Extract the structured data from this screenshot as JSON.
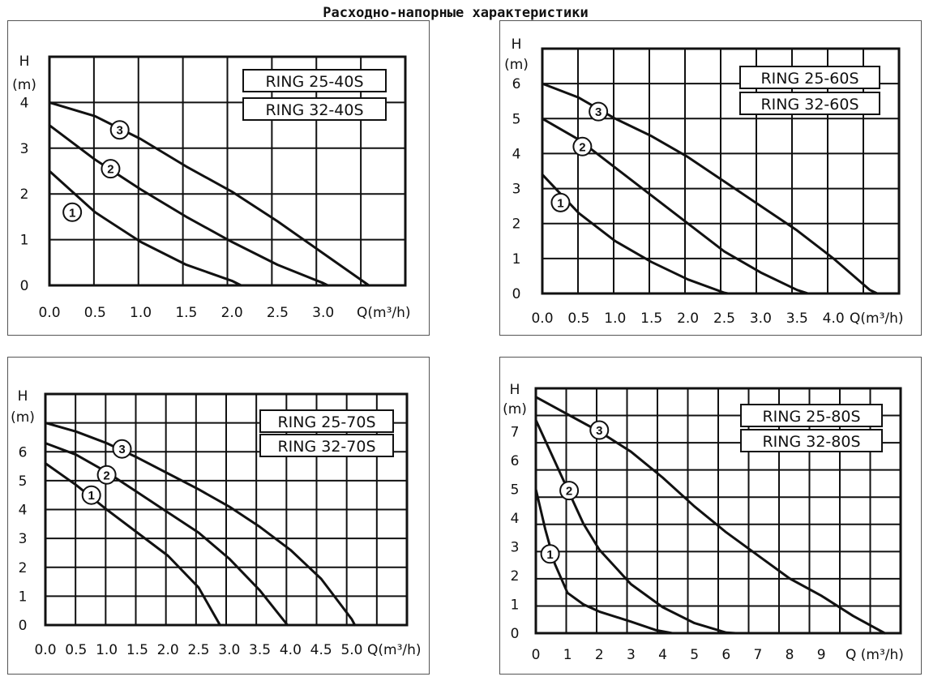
{
  "page_title": "Расходно-напорные характеристики",
  "chart_data": [
    {
      "type": "line",
      "models": [
        "RING 25-40S",
        "RING 32-40S"
      ],
      "ylabel_line1": "H",
      "ylabel_line2": "(m)",
      "xlabel": "Q(m³/h)",
      "xlim": [
        0,
        3.9
      ],
      "ylim": [
        0,
        5
      ],
      "grid_x": 8,
      "grid_y": 5,
      "x_ticks": [
        "0.0",
        "0.5",
        "1.0",
        "1.5",
        "2.0",
        "2.5",
        "3.0"
      ],
      "y_ticks": [
        "0",
        "1",
        "2",
        "3",
        "4"
      ],
      "series": [
        {
          "name": "1",
          "label_at": [
            0.25,
            1.6
          ],
          "points": [
            [
              0,
              2.5
            ],
            [
              0.5,
              1.6
            ],
            [
              1.0,
              0.95
            ],
            [
              1.5,
              0.45
            ],
            [
              2.0,
              0.1
            ],
            [
              2.1,
              0
            ]
          ]
        },
        {
          "name": "2",
          "label_at": [
            0.67,
            2.55
          ],
          "points": [
            [
              0,
              3.5
            ],
            [
              0.5,
              2.75
            ],
            [
              1.0,
              2.1
            ],
            [
              1.5,
              1.5
            ],
            [
              2.0,
              0.95
            ],
            [
              2.5,
              0.45
            ],
            [
              3.0,
              0.05
            ],
            [
              3.05,
              0
            ]
          ]
        },
        {
          "name": "3",
          "label_at": [
            0.77,
            3.4
          ],
          "points": [
            [
              0,
              4.0
            ],
            [
              0.5,
              3.7
            ],
            [
              1.0,
              3.2
            ],
            [
              1.5,
              2.6
            ],
            [
              2.0,
              2.05
            ],
            [
              2.5,
              1.4
            ],
            [
              3.0,
              0.7
            ],
            [
              3.5,
              0
            ]
          ]
        }
      ]
    },
    {
      "type": "line",
      "models": [
        "RING 25-60S",
        "RING 32-60S"
      ],
      "ylabel_line1": "H",
      "ylabel_line2": "(m)",
      "xlabel": "Q(m³/h)",
      "xlim": [
        0,
        4.9
      ],
      "ylim": [
        0,
        7
      ],
      "grid_x": 10,
      "grid_y": 7,
      "x_ticks": [
        "0.0",
        "0.5",
        "1.0",
        "1.5",
        "2.0",
        "2.5",
        "3.0",
        "3.5",
        "4.0"
      ],
      "y_ticks": [
        "0",
        "1",
        "2",
        "3",
        "4",
        "5",
        "6"
      ],
      "series": [
        {
          "name": "1",
          "label_at": [
            0.25,
            2.6
          ],
          "points": [
            [
              0,
              3.4
            ],
            [
              0.5,
              2.3
            ],
            [
              1.0,
              1.5
            ],
            [
              1.5,
              0.9
            ],
            [
              2.0,
              0.4
            ],
            [
              2.5,
              0.02
            ],
            [
              2.55,
              0
            ]
          ]
        },
        {
          "name": "2",
          "label_at": [
            0.55,
            4.2
          ],
          "points": [
            [
              0,
              5.0
            ],
            [
              0.5,
              4.4
            ],
            [
              1.0,
              3.6
            ],
            [
              1.5,
              2.8
            ],
            [
              2.0,
              2.0
            ],
            [
              2.5,
              1.2
            ],
            [
              3.0,
              0.6
            ],
            [
              3.5,
              0.1
            ],
            [
              3.65,
              0
            ]
          ]
        },
        {
          "name": "3",
          "label_at": [
            0.77,
            5.2
          ],
          "points": [
            [
              0,
              6.0
            ],
            [
              0.5,
              5.6
            ],
            [
              1.0,
              5.0
            ],
            [
              1.5,
              4.5
            ],
            [
              2.0,
              3.9
            ],
            [
              2.5,
              3.2
            ],
            [
              3.0,
              2.5
            ],
            [
              3.5,
              1.8
            ],
            [
              4.0,
              1.0
            ],
            [
              4.5,
              0.1
            ],
            [
              4.6,
              0
            ]
          ]
        }
      ]
    },
    {
      "type": "line",
      "models": [
        "RING 25-70S",
        "RING 32-70S"
      ],
      "ylabel_line1": "H",
      "ylabel_line2": "(m)",
      "xlabel": "Q(m³/h)",
      "xlim": [
        0,
        5.9
      ],
      "ylim": [
        0,
        8
      ],
      "grid_x": 12,
      "grid_y": 8,
      "x_ticks": [
        "0.0",
        "0.5",
        "1.0",
        "1.5",
        "2.0",
        "2.5",
        "3.0",
        "3.5",
        "4.0",
        "4.5",
        "5.0"
      ],
      "y_ticks": [
        "0",
        "1",
        "2",
        "3",
        "4",
        "5",
        "6"
      ],
      "series": [
        {
          "name": "1",
          "label_at": [
            0.75,
            4.5
          ],
          "points": [
            [
              0,
              5.6
            ],
            [
              0.5,
              4.85
            ],
            [
              1.0,
              4.0
            ],
            [
              1.5,
              3.2
            ],
            [
              2.0,
              2.4
            ],
            [
              2.5,
              1.3
            ],
            [
              2.85,
              0
            ]
          ]
        },
        {
          "name": "2",
          "label_at": [
            1.0,
            5.2
          ],
          "points": [
            [
              0,
              6.3
            ],
            [
              0.5,
              5.9
            ],
            [
              1.0,
              5.3
            ],
            [
              1.5,
              4.6
            ],
            [
              2.0,
              3.9
            ],
            [
              2.5,
              3.2
            ],
            [
              3.0,
              2.3
            ],
            [
              3.5,
              1.2
            ],
            [
              3.95,
              0
            ]
          ]
        },
        {
          "name": "3",
          "label_at": [
            1.25,
            6.1
          ],
          "points": [
            [
              0,
              7.0
            ],
            [
              0.5,
              6.7
            ],
            [
              1.0,
              6.3
            ],
            [
              1.5,
              5.8
            ],
            [
              2.0,
              5.25
            ],
            [
              2.5,
              4.7
            ],
            [
              3.0,
              4.1
            ],
            [
              3.5,
              3.4
            ],
            [
              4.0,
              2.6
            ],
            [
              4.5,
              1.6
            ],
            [
              5.0,
              0.2
            ],
            [
              5.05,
              0
            ]
          ]
        }
      ]
    },
    {
      "type": "line",
      "models": [
        "RING 25-80S",
        "RING 32-80S"
      ],
      "ylabel_line1": "H",
      "ylabel_line2": "(m)",
      "xlabel": "Q (m³/h)",
      "xlim": [
        0,
        11.5
      ],
      "ylim": [
        0,
        8.5
      ],
      "grid_x": 12,
      "grid_y": 9,
      "x_ticks": [
        "0",
        "1",
        "2",
        "3",
        "4",
        "5",
        "6",
        "7",
        "8",
        "9"
      ],
      "y_ticks": [
        "0",
        "1",
        "2",
        "3",
        "4",
        "5",
        "6",
        "7"
      ],
      "series": [
        {
          "name": "1",
          "label_at": [
            0.45,
            2.75
          ],
          "points": [
            [
              0,
              5.0
            ],
            [
              0.3,
              3.6
            ],
            [
              0.6,
              2.4
            ],
            [
              1.0,
              1.4
            ],
            [
              1.5,
              1.0
            ],
            [
              2.0,
              0.75
            ],
            [
              3.0,
              0.4
            ],
            [
              3.8,
              0.1
            ],
            [
              4.3,
              0
            ]
          ]
        },
        {
          "name": "2",
          "label_at": [
            1.05,
            4.95
          ],
          "points": [
            [
              0,
              7.4
            ],
            [
              0.5,
              6.2
            ],
            [
              1.0,
              5.0
            ],
            [
              1.5,
              3.8
            ],
            [
              2.0,
              2.9
            ],
            [
              3.0,
              1.7
            ],
            [
              4.0,
              0.9
            ],
            [
              5.0,
              0.35
            ],
            [
              6.0,
              0.02
            ],
            [
              6.3,
              0
            ]
          ]
        },
        {
          "name": "3",
          "label_at": [
            2.0,
            7.05
          ],
          "points": [
            [
              0,
              8.2
            ],
            [
              1.0,
              7.6
            ],
            [
              2.0,
              7.0
            ],
            [
              3.0,
              6.3
            ],
            [
              4.0,
              5.4
            ],
            [
              5.0,
              4.4
            ],
            [
              6.0,
              3.5
            ],
            [
              7.0,
              2.7
            ],
            [
              8.0,
              1.9
            ],
            [
              9.0,
              1.3
            ],
            [
              10.0,
              0.6
            ],
            [
              11.0,
              0
            ]
          ]
        }
      ]
    }
  ]
}
